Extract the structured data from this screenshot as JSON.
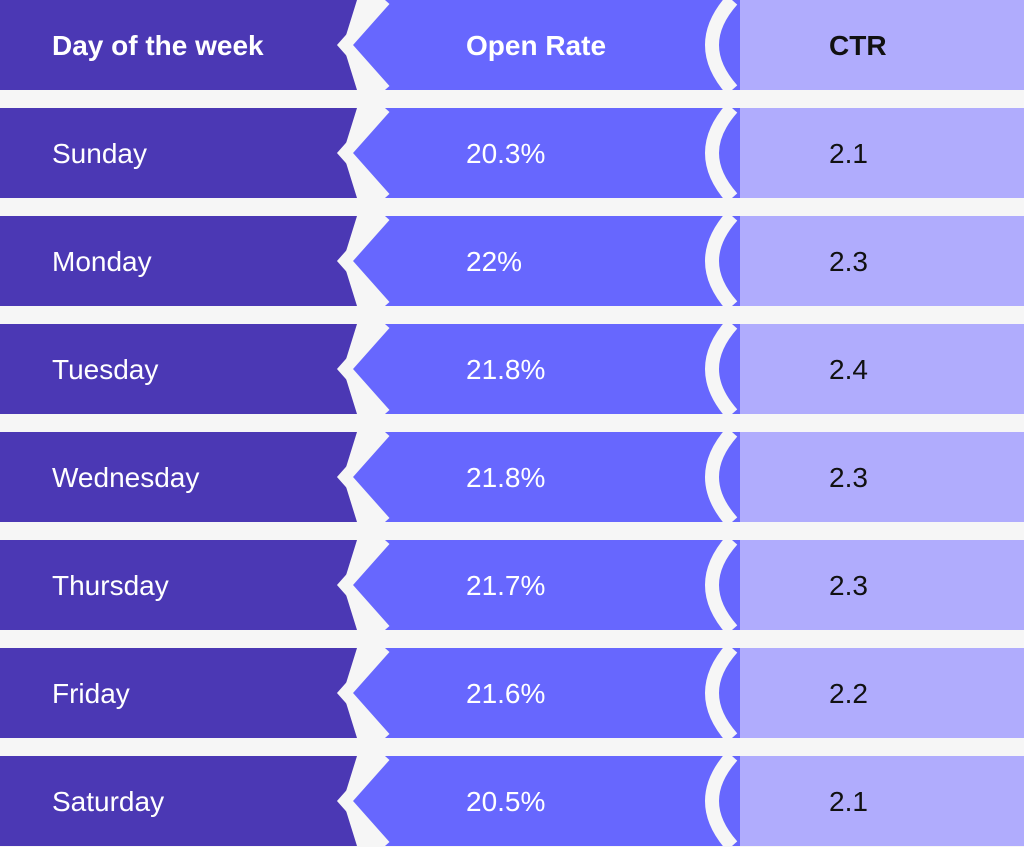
{
  "colors": {
    "background": "#f6f6f6",
    "column_1": "#4b38b4",
    "column_2": "#6767fe",
    "column_3": "#b0acfd",
    "text_light": "#ffffff",
    "text_dark": "#111111"
  },
  "chart_data": {
    "type": "table",
    "columns": [
      "Day of the week",
      "Open Rate",
      "CTR"
    ],
    "rows": [
      [
        "Sunday",
        "20.3%",
        "2.1"
      ],
      [
        "Monday",
        "22%",
        "2.3"
      ],
      [
        "Tuesday",
        "21.8%",
        "2.4"
      ],
      [
        "Wednesday",
        "21.8%",
        "2.3"
      ],
      [
        "Thursday",
        "21.7%",
        "2.3"
      ],
      [
        "Friday",
        "21.6%",
        "2.2"
      ],
      [
        "Saturday",
        "20.5%",
        "2.1"
      ]
    ]
  }
}
